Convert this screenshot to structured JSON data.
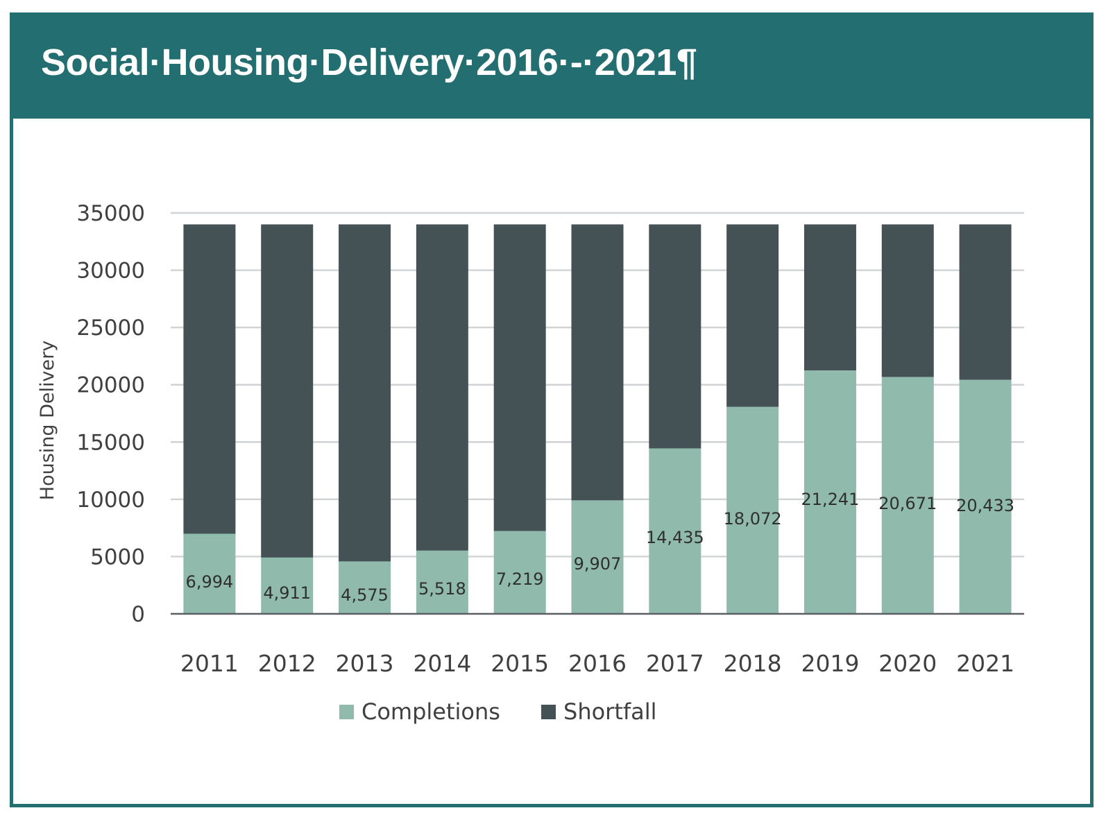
{
  "header": {
    "title": "Social·Housing·Delivery·2016·-·2021¶"
  },
  "colors": {
    "brand_teal": "#236e70",
    "completions": "#8fbaac",
    "shortfall": "#445255",
    "gridline": "#d0d4d6",
    "text": "#404040"
  },
  "chart_data": {
    "type": "bar",
    "stacked": true,
    "title": "",
    "xlabel": "",
    "ylabel": "Housing Delivery",
    "ylim": [
      0,
      35000
    ],
    "yticks": [
      0,
      5000,
      10000,
      15000,
      20000,
      25000,
      30000,
      35000
    ],
    "grid": true,
    "legend_position": "bottom",
    "categories": [
      "2011",
      "2012",
      "2013",
      "2014",
      "2015",
      "2016",
      "2017",
      "2018",
      "2019",
      "2020",
      "2021"
    ],
    "series": [
      {
        "name": "Completions",
        "values": [
          6994,
          4911,
          4575,
          5518,
          7219,
          9907,
          14435,
          18072,
          21241,
          20671,
          20433
        ],
        "labels": [
          "6,994",
          "4,911",
          "4,575",
          "5,518",
          "7,219",
          "9,907",
          "14,435",
          "18,072",
          "21,241",
          "20,671",
          "20,433"
        ]
      },
      {
        "name": "Shortfall",
        "values": [
          27006,
          29089,
          29425,
          28482,
          26781,
          24093,
          19565,
          15928,
          12759,
          13329,
          13567
        ]
      }
    ]
  }
}
